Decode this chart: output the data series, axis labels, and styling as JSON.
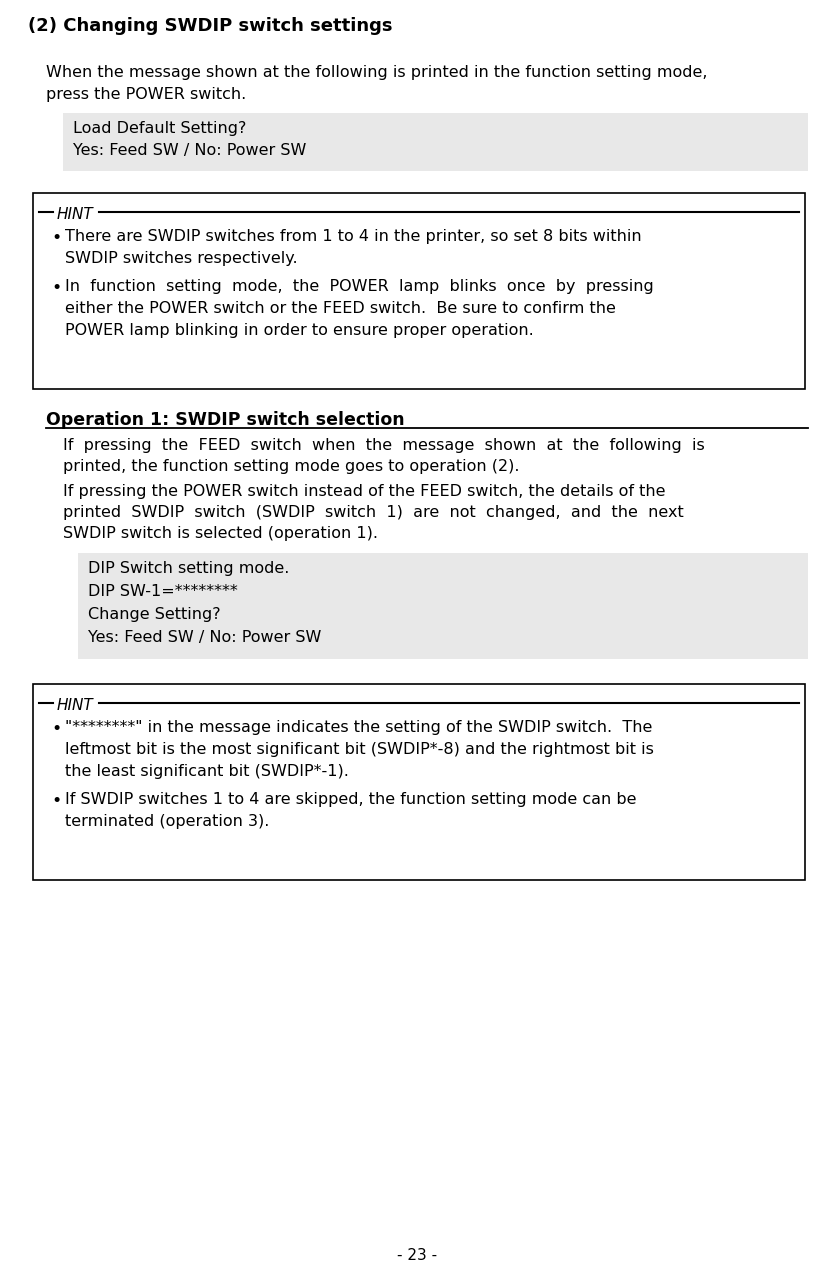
{
  "title": "(2) Changing SWDIP switch settings",
  "bg_color": "#ffffff",
  "text_color": "#000000",
  "page_number": "- 23 -",
  "code_box1": [
    "Load Default Setting?",
    "Yes: Feed SW / No: Power SW"
  ],
  "hint1_bullet1_lines": [
    "There are SWDIP switches from 1 to 4 in the printer, so set 8 bits within",
    "SWDIP switches respectively."
  ],
  "hint1_bullet2_lines": [
    "In  function  setting  mode,  the  POWER  lamp  blinks  once  by  pressing",
    "either the POWER switch or the FEED switch.  Be sure to confirm the",
    "POWER lamp blinking in order to ensure proper operation."
  ],
  "op1_title": "Operation 1: SWDIP switch selection",
  "op1_text1_lines": [
    "If  pressing  the  FEED  switch  when  the  message  shown  at  the  following  is",
    "printed, the function setting mode goes to operation (2)."
  ],
  "op1_text2_lines": [
    "If pressing the POWER switch instead of the FEED switch, the details of the",
    "printed  SWDIP  switch  (SWDIP  switch  1)  are  not  changed,  and  the  next",
    "SWDIP switch is selected (operation 1)."
  ],
  "code_box2": [
    "DIP Switch setting mode.",
    "DIP SW-1=********",
    "Change Setting?",
    "Yes: Feed SW / No: Power SW"
  ],
  "hint2_bullet1_lines": [
    "\"********\" in the message indicates the setting of the SWDIP switch.  The",
    "leftmost bit is the most significant bit (SWDIP*-8) and the rightmost bit is",
    "the least significant bit (SWDIP*-1)."
  ],
  "hint2_bullet2_lines": [
    "If SWDIP switches 1 to 4 are skipped, the function setting mode can be",
    "terminated (operation 3)."
  ],
  "intro_line1": "When the message shown at the following is printed in the function setting mode,",
  "intro_line2": "press the POWER switch.",
  "code_bg": "#e8e8e8",
  "hint_border": "#000000",
  "fs_title": 13,
  "fs_body": 11.5,
  "fs_hint_label": 11,
  "fs_code": 11.5,
  "fs_op": 12.5,
  "fs_page": 11
}
